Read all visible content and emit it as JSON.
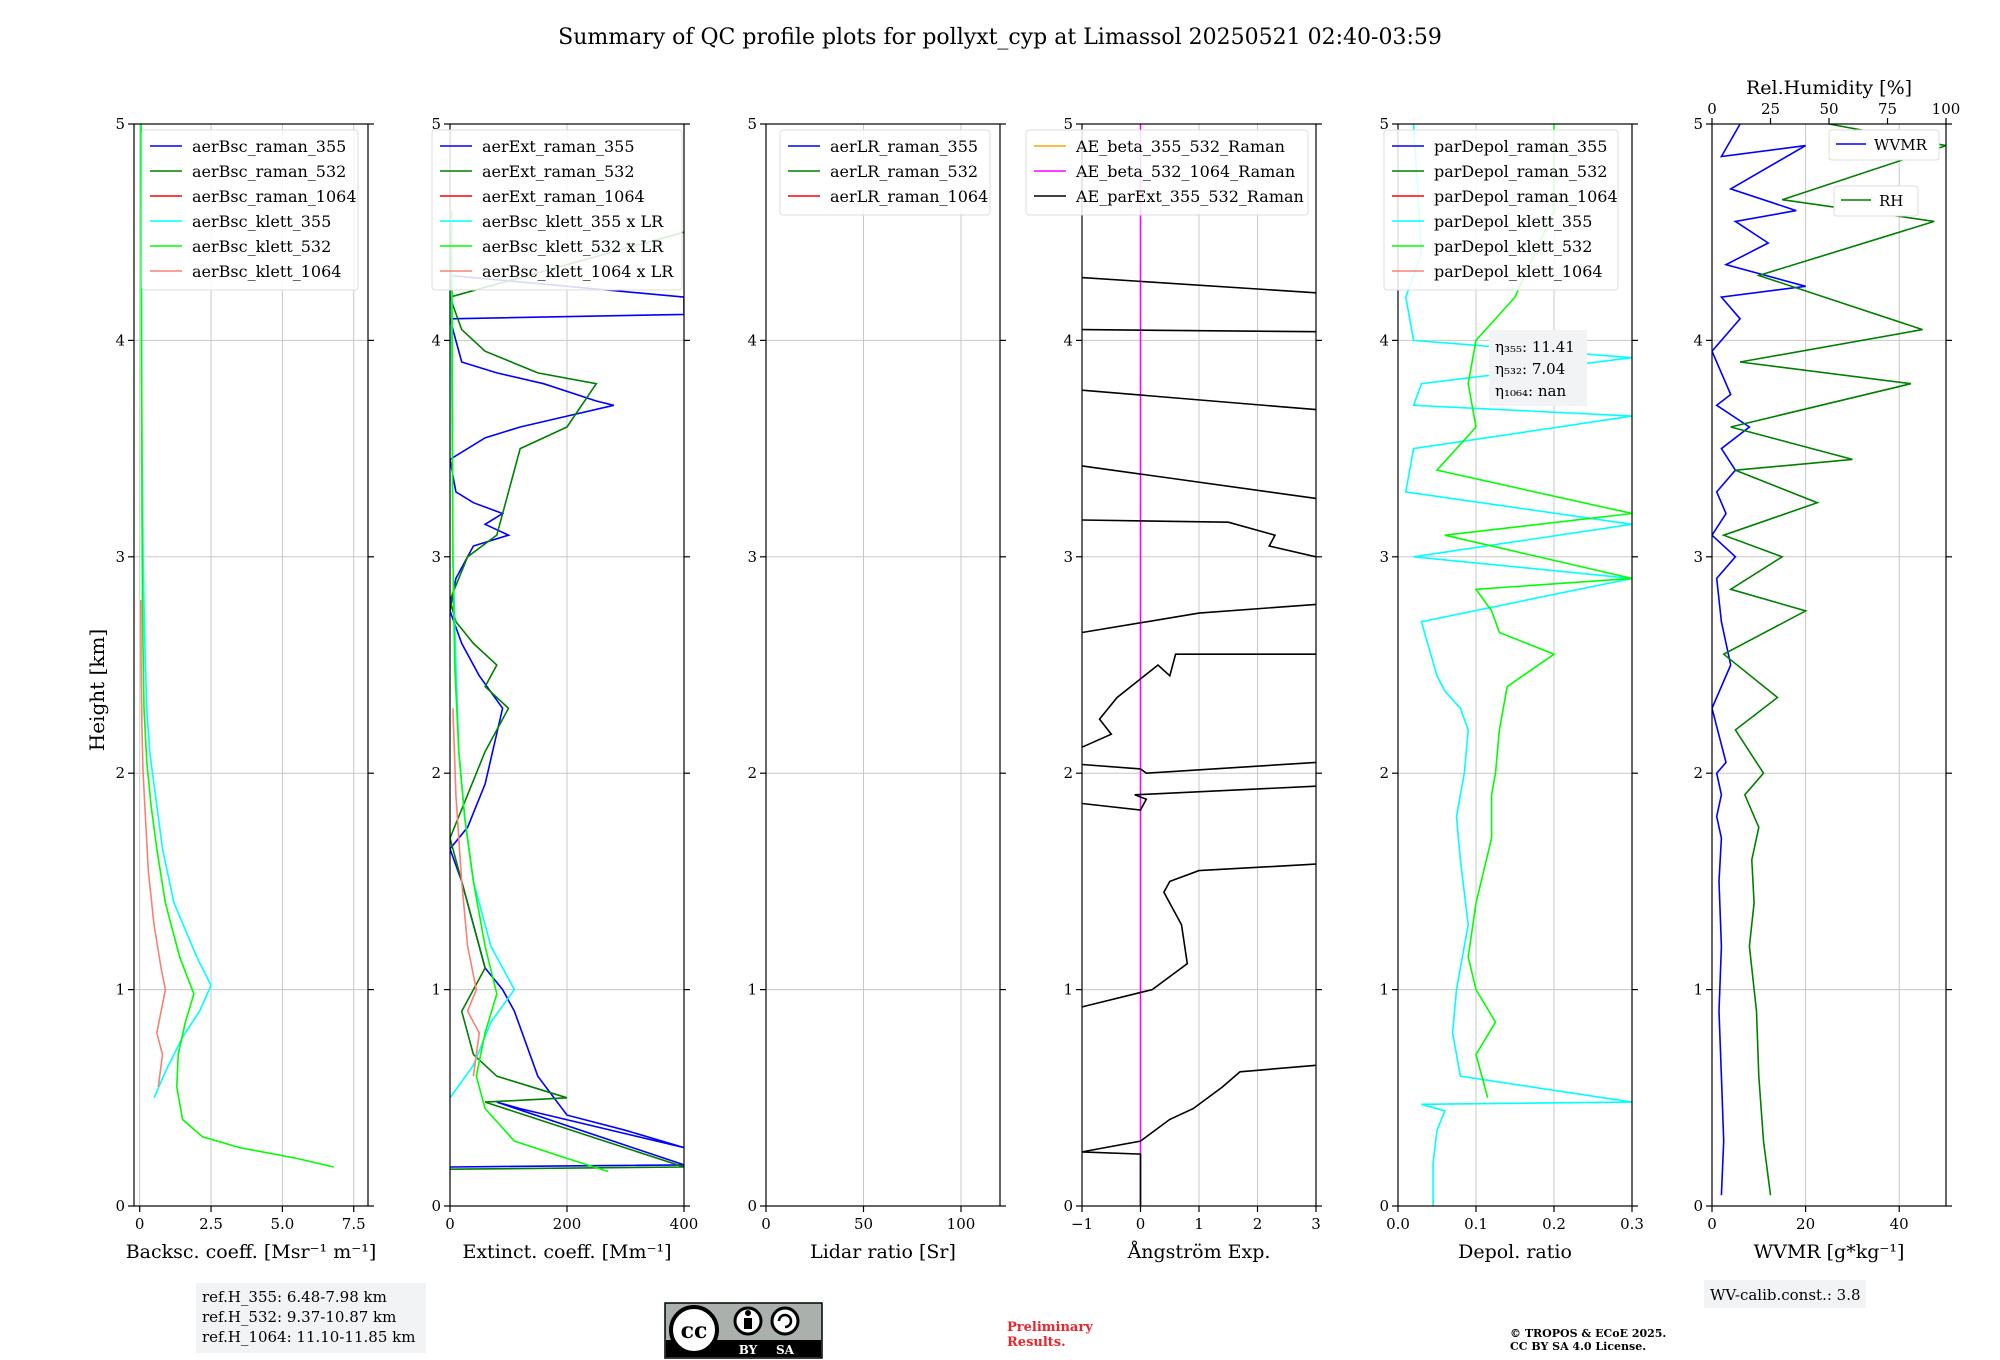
{
  "title": "Summary of QC profile plots for pollyxt_cyp at Limassol 20250521 02:40-03:59",
  "yaxis_label": "Height [km]",
  "chart_data": [
    {
      "type": "line",
      "xlabel": "Backsc. coeff. [Msr⁻¹ m⁻¹]",
      "xlim": [
        -0.2,
        8
      ],
      "xticks": [
        0,
        2.5,
        5.0,
        7.5
      ],
      "xticklabels": [
        "0",
        "2.5",
        "5.0",
        "7.5"
      ],
      "ylim": [
        0,
        5
      ],
      "yticks": [
        0,
        1,
        2,
        3,
        4,
        5
      ],
      "grid": true,
      "legend_loc": "top-right",
      "series": [
        {
          "name": "aerBsc_raman_355",
          "color": "#0000ff",
          "x": [],
          "y": []
        },
        {
          "name": "aerBsc_raman_532",
          "color": "#008000",
          "x": [],
          "y": []
        },
        {
          "name": "aerBsc_raman_1064",
          "color": "#ff0000",
          "x": [],
          "y": []
        },
        {
          "name": "aerBsc_klett_355",
          "color": "#00ffff",
          "x": [
            0.5,
            0.9,
            1.5,
            2.1,
            2.5,
            2.0,
            1.2,
            0.8,
            0.55,
            0.45,
            0.35,
            0.25,
            0.18,
            0.12,
            0.08,
            0.06,
            0.05,
            0.04,
            0.04
          ],
          "y": [
            0.5,
            0.62,
            0.78,
            0.9,
            1.02,
            1.15,
            1.4,
            1.65,
            1.9,
            2.0,
            2.1,
            2.3,
            2.6,
            3.0,
            3.5,
            4.0,
            4.4,
            4.8,
            5.0
          ]
        },
        {
          "name": "aerBsc_klett_532",
          "color": "#00ff00",
          "x": [
            6.8,
            5.5,
            3.5,
            2.2,
            1.5,
            1.3,
            1.35,
            1.6,
            1.9,
            1.4,
            0.9,
            0.6,
            0.4,
            0.25,
            0.15,
            0.1,
            0.08,
            0.07,
            0.06,
            0.05
          ],
          "y": [
            0.18,
            0.22,
            0.27,
            0.32,
            0.4,
            0.55,
            0.7,
            0.85,
            0.98,
            1.15,
            1.4,
            1.65,
            1.85,
            2.05,
            2.3,
            2.7,
            3.2,
            3.8,
            4.5,
            5.0
          ]
        },
        {
          "name": "aerBsc_klett_1064",
          "color": "#fa8072",
          "x": [
            0.65,
            0.8,
            0.6,
            0.9,
            0.75,
            0.5,
            0.3,
            0.2,
            0.12,
            0.08,
            0.05,
            0.04
          ],
          "y": [
            0.55,
            0.7,
            0.8,
            1.0,
            1.1,
            1.3,
            1.55,
            1.8,
            2.0,
            2.2,
            2.5,
            2.8
          ]
        }
      ]
    },
    {
      "type": "line",
      "xlabel": "Extinct. coeff. [Mm⁻¹]",
      "xlim": [
        0,
        400
      ],
      "xticks": [
        0,
        200,
        400
      ],
      "xticklabels": [
        "0",
        "200",
        "400"
      ],
      "ylim": [
        0,
        5
      ],
      "yticks": [
        0,
        1,
        2,
        3,
        4,
        5
      ],
      "grid": true,
      "legend_loc": "top-right",
      "series": [
        {
          "name": "aerExt_raman_355",
          "color": "#0000ff",
          "x": [
            0,
            400,
            80,
            120,
            400,
            300,
            200,
            150,
            110,
            90,
            60,
            40,
            20,
            0,
            30,
            60,
            90,
            50,
            20,
            0,
            10,
            40,
            100,
            60,
            90,
            40,
            10,
            0,
            60,
            120,
            200,
            280,
            250,
            160,
            80,
            20,
            0,
            400,
            400,
            0
          ],
          "y": [
            0.18,
            0.19,
            0.48,
            0.45,
            0.27,
            0.35,
            0.42,
            0.6,
            0.9,
            1.0,
            1.1,
            1.3,
            1.5,
            1.65,
            1.75,
            1.95,
            2.3,
            2.45,
            2.6,
            2.75,
            2.9,
            3.05,
            3.1,
            3.15,
            3.2,
            3.25,
            3.3,
            3.45,
            3.55,
            3.6,
            3.65,
            3.7,
            3.72,
            3.8,
            3.85,
            3.9,
            4.1,
            4.12,
            4.2,
            4.3
          ]
        },
        {
          "name": "aerExt_raman_532",
          "color": "#008000",
          "x": [
            0,
            400,
            60,
            200,
            80,
            40,
            20,
            60,
            40,
            20,
            0,
            30,
            60,
            100,
            60,
            80,
            40,
            10,
            0,
            30,
            80,
            120,
            200,
            250,
            150,
            60,
            20,
            0,
            400
          ],
          "y": [
            0.17,
            0.18,
            0.48,
            0.5,
            0.6,
            0.7,
            0.9,
            1.1,
            1.3,
            1.5,
            1.7,
            1.9,
            2.1,
            2.3,
            2.4,
            2.5,
            2.6,
            2.7,
            2.8,
            3.0,
            3.1,
            3.5,
            3.6,
            3.8,
            3.85,
            3.95,
            4.05,
            4.2,
            4.5
          ]
        },
        {
          "name": "aerExt_raman_1064",
          "color": "#ff0000",
          "x": [],
          "y": []
        },
        {
          "name": "aerBsc_klett_355 x LR",
          "color": "#00ffff",
          "x": [
            0,
            40,
            70,
            110,
            70,
            40,
            25,
            15,
            10,
            5,
            3,
            2
          ],
          "y": [
            0.5,
            0.65,
            0.85,
            1.0,
            1.2,
            1.5,
            1.8,
            2.1,
            2.5,
            3.0,
            3.8,
            4.5
          ]
        },
        {
          "name": "aerBsc_klett_532 x LR",
          "color": "#00ff00",
          "x": [
            270,
            200,
            110,
            60,
            45,
            60,
            80,
            60,
            40,
            25,
            15,
            8,
            5,
            4,
            3
          ],
          "y": [
            0.16,
            0.22,
            0.3,
            0.45,
            0.6,
            0.8,
            0.98,
            1.2,
            1.5,
            1.8,
            2.1,
            2.5,
            3.0,
            3.8,
            4.6
          ]
        },
        {
          "name": "aerBsc_klett_1064 x LR",
          "color": "#fa8072",
          "x": [
            40,
            50,
            30,
            45,
            30,
            20,
            10,
            5
          ],
          "y": [
            0.6,
            0.8,
            0.9,
            1.0,
            1.2,
            1.5,
            1.9,
            2.3
          ]
        }
      ]
    },
    {
      "type": "line",
      "xlabel": "Lidar ratio [Sr]",
      "xlim": [
        0,
        120
      ],
      "xticks": [
        0,
        50,
        100
      ],
      "xticklabels": [
        "0",
        "50",
        "100"
      ],
      "ylim": [
        0,
        5
      ],
      "yticks": [
        0,
        1,
        2,
        3,
        4,
        5
      ],
      "grid": true,
      "legend_loc": "top-right",
      "series": [
        {
          "name": "aerLR_raman_355",
          "color": "#0000ff",
          "x": [],
          "y": []
        },
        {
          "name": "aerLR_raman_532",
          "color": "#008000",
          "x": [],
          "y": []
        },
        {
          "name": "aerLR_raman_1064",
          "color": "#ff0000",
          "x": [],
          "y": []
        }
      ]
    },
    {
      "type": "line",
      "xlabel": "Ångström Exp.",
      "xlim": [
        -1,
        3
      ],
      "xticks": [
        -1,
        0,
        1,
        2,
        3
      ],
      "xticklabels": [
        "−1",
        "0",
        "1",
        "2",
        "3"
      ],
      "ylim": [
        0,
        5
      ],
      "yticks": [
        0,
        1,
        2,
        3,
        4,
        5
      ],
      "grid": true,
      "legend_loc": "top-left",
      "series": [
        {
          "name": "AE_beta_355_532_Raman",
          "color": "#ffa500",
          "x": [],
          "y": []
        },
        {
          "name": "AE_beta_532_1064_Raman",
          "color": "#ff00ff",
          "x": [
            0,
            0
          ],
          "y": [
            0,
            5
          ]
        },
        {
          "name": "AE_parExt_355_532_Raman",
          "color": "#000000",
          "x": [
            0,
            0,
            -1,
            0,
            0.5,
            0.9,
            1.4,
            1.7,
            3.0,
            null,
            -1,
            0.2,
            0.8,
            0.7,
            0.4,
            0.5,
            1.0,
            3.0,
            null,
            -1,
            0,
            0.1,
            -0.1,
            3.0,
            null,
            -1,
            0,
            0.1,
            3.0,
            null,
            -1,
            -0.5,
            -0.7,
            -0.4,
            0.3,
            0.5,
            0.6,
            3.0,
            null,
            -1,
            1.0,
            3.0,
            null,
            -1,
            1.5,
            2.3,
            2.2,
            3.0,
            null,
            -1,
            3.0,
            null,
            -1,
            3.0,
            null,
            -1,
            3.0,
            null,
            -1,
            3.0
          ],
          "y": [
            0,
            0.24,
            0.25,
            0.3,
            0.4,
            0.45,
            0.55,
            0.62,
            0.65,
            null,
            0.92,
            1.0,
            1.12,
            1.3,
            1.45,
            1.5,
            1.55,
            1.58,
            null,
            1.86,
            1.83,
            1.88,
            1.9,
            1.94,
            null,
            2.04,
            2.02,
            2.0,
            2.05,
            null,
            2.12,
            2.18,
            2.25,
            2.35,
            2.5,
            2.45,
            2.55,
            2.55,
            null,
            2.65,
            2.74,
            2.78,
            null,
            3.17,
            3.16,
            3.1,
            3.05,
            3.0,
            null,
            3.42,
            3.27,
            null,
            3.77,
            3.68,
            null,
            4.05,
            4.04,
            null,
            4.29,
            4.22
          ]
        }
      ]
    },
    {
      "type": "line",
      "xlabel": "Depol. ratio",
      "xlim": [
        0,
        0.3
      ],
      "xticks": [
        0,
        0.1,
        0.2,
        0.3
      ],
      "xticklabels": [
        "0.0",
        "0.1",
        "0.2",
        "0.3"
      ],
      "ylim": [
        0,
        5
      ],
      "yticks": [
        0,
        1,
        2,
        3,
        4,
        5
      ],
      "grid": true,
      "legend_loc": "top-left",
      "annotation": [
        "η₃₅₅: 11.41",
        "η₅₃₂: 7.04",
        "η₁₀₆₄: nan"
      ],
      "series": [
        {
          "name": "parDepol_raman_355",
          "color": "#0000ff",
          "x": [],
          "y": []
        },
        {
          "name": "parDepol_raman_532",
          "color": "#008000",
          "x": [],
          "y": []
        },
        {
          "name": "parDepol_raman_1064",
          "color": "#ff0000",
          "x": [],
          "y": []
        },
        {
          "name": "parDepol_klett_355",
          "color": "#00ffff",
          "x": [
            0.045,
            0.045,
            0.05,
            0.06,
            0.03,
            0.3,
            0.08,
            0.07,
            0.075,
            0.09,
            0.08,
            0.075,
            0.085,
            0.09,
            0.08,
            0.06,
            0.05,
            0.03,
            0.3,
            0.02,
            0.3,
            0.01,
            0.02,
            0.3,
            0.02,
            0.03,
            0.3,
            0.02,
            0.01,
            0.03,
            0.02
          ],
          "y": [
            0,
            0.2,
            0.35,
            0.44,
            0.47,
            0.48,
            0.6,
            0.8,
            1.0,
            1.3,
            1.6,
            1.8,
            2.0,
            2.2,
            2.3,
            2.38,
            2.45,
            2.7,
            2.9,
            3.0,
            3.15,
            3.3,
            3.5,
            3.65,
            3.7,
            3.8,
            3.92,
            4.0,
            4.2,
            4.4,
            5.0
          ]
        },
        {
          "name": "parDepol_klett_532",
          "color": "#00ff00",
          "x": [
            0.115,
            0.1,
            0.125,
            0.1,
            0.09,
            0.1,
            0.12,
            0.12,
            0.125,
            0.13,
            0.14,
            0.2,
            0.13,
            0.12,
            0.1,
            0.3,
            0.06,
            0.3,
            0.05,
            0.1,
            0.09,
            0.1,
            0.15,
            0.2,
            0.2
          ],
          "y": [
            0.5,
            0.7,
            0.85,
            1.0,
            1.15,
            1.4,
            1.7,
            1.9,
            2.0,
            2.2,
            2.4,
            2.55,
            2.65,
            2.75,
            2.85,
            2.9,
            3.1,
            3.2,
            3.4,
            3.6,
            3.8,
            4.0,
            4.2,
            4.6,
            5.0
          ]
        },
        {
          "name": "parDepol_klett_1064",
          "color": "#fa8072",
          "x": [],
          "y": []
        }
      ]
    },
    {
      "type": "line",
      "xlabel": "WVMR [g*kg⁻¹]",
      "xlim": [
        0,
        50
      ],
      "xticks": [
        0,
        20,
        40
      ],
      "xticklabels": [
        "0",
        "20",
        "40"
      ],
      "x2label": "Rel.Humidity [%]",
      "x2lim": [
        0,
        100
      ],
      "x2ticks": [
        0,
        25,
        50,
        75,
        100
      ],
      "x2ticklabels": [
        "0",
        "25",
        "50",
        "75",
        "100"
      ],
      "ylim": [
        0,
        5
      ],
      "yticks": [
        0,
        1,
        2,
        3,
        4,
        5
      ],
      "grid": true,
      "legend_loc": "top-right",
      "calibration": "WV-calib.const.: 3.8",
      "series": [
        {
          "name": "WVMR",
          "color": "#0000ff",
          "x": [
            2,
            2.5,
            2,
            1.5,
            2,
            1.5,
            2,
            1,
            2,
            1,
            3,
            0,
            4,
            2,
            1,
            5,
            0,
            3,
            1,
            5,
            2,
            8,
            1,
            4,
            0,
            6,
            2,
            20,
            3,
            12,
            5,
            18,
            4,
            20,
            2,
            6
          ],
          "y": [
            0.05,
            0.3,
            0.6,
            0.9,
            1.2,
            1.5,
            1.7,
            1.8,
            1.9,
            2.0,
            2.05,
            2.3,
            2.5,
            2.7,
            2.9,
            3.0,
            3.1,
            3.2,
            3.3,
            3.4,
            3.5,
            3.6,
            3.7,
            3.75,
            3.95,
            4.1,
            4.2,
            4.25,
            4.35,
            4.45,
            4.55,
            4.6,
            4.7,
            4.9,
            4.85,
            5.0
          ]
        },
        {
          "name": "RH",
          "color": "#008000",
          "x": [
            25,
            22,
            20,
            19,
            16,
            18,
            17,
            20,
            14,
            22,
            10,
            28,
            5,
            40,
            8,
            30,
            5,
            45,
            10,
            60,
            8,
            85,
            12,
            90,
            20,
            95,
            30,
            100,
            50
          ],
          "y": [
            0.05,
            0.3,
            0.6,
            0.9,
            1.2,
            1.4,
            1.6,
            1.75,
            1.9,
            2.0,
            2.2,
            2.35,
            2.55,
            2.75,
            2.85,
            3.0,
            3.1,
            3.25,
            3.4,
            3.45,
            3.6,
            3.8,
            3.9,
            4.05,
            4.3,
            4.55,
            4.65,
            4.9,
            5.0
          ]
        }
      ]
    }
  ],
  "footer": {
    "ref_heights": [
      "ref.H_355: 6.48-7.98 km",
      "ref.H_532: 9.37-10.87 km",
      "ref.H_1064: 11.10-11.85 km"
    ],
    "license_badge": {
      "by": "BY",
      "sa": "SA"
    },
    "preliminary": [
      "Preliminary",
      "Results."
    ],
    "copyright": [
      "© TROPOS & ECoE 2025.",
      "CC BY SA 4.0 License."
    ]
  }
}
